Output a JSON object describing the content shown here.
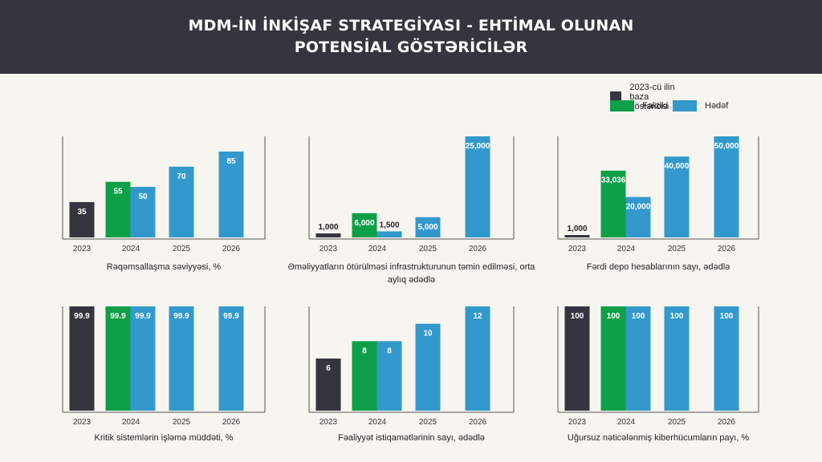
{
  "header": {
    "title_line1": "MDM-İN İNKİŞAF STRATEGİYASI - EHTİMAL OLUNAN",
    "title_line2": "POTENSİAL GÖSTƏRİCİLƏR"
  },
  "legend": {
    "base": "2023-cü ilin baza göstəricisi",
    "actual": "Faktiki",
    "target": "Hədəf"
  },
  "colors": {
    "base": "#34353f",
    "actual": "#0e9f49",
    "target": "#3399cc",
    "header": "#34353f"
  },
  "chart_data": [
    {
      "type": "bar",
      "caption": "Rəqəmsallaşma səviyyəsi, %",
      "categories": [
        "2023",
        "2024",
        "2025",
        "2026"
      ],
      "ylim": [
        0,
        100
      ],
      "bars": [
        {
          "category": "2023",
          "kind": "base",
          "value": 35,
          "label": "35"
        },
        {
          "category": "2024",
          "kind": "actual",
          "value": 55,
          "label": "55"
        },
        {
          "category": "2024",
          "kind": "target",
          "value": 50,
          "label": "50"
        },
        {
          "category": "2025",
          "kind": "target",
          "value": 70,
          "label": "70"
        },
        {
          "category": "2026",
          "kind": "target",
          "value": 85,
          "label": "85"
        }
      ]
    },
    {
      "type": "bar",
      "caption": "Əməliyyatların ötürülməsi infrastrukturunun təmin edilməsi, orta aylıq ədədlə",
      "categories": [
        "2023",
        "2024",
        "2025",
        "2026"
      ],
      "ylim": [
        0,
        25000
      ],
      "bars": [
        {
          "category": "2023",
          "kind": "base",
          "value": 1000,
          "label": "1,000"
        },
        {
          "category": "2024",
          "kind": "actual",
          "value": 6000,
          "label": "6,000"
        },
        {
          "category": "2024",
          "kind": "target",
          "value": 1500,
          "label": "1,500"
        },
        {
          "category": "2025",
          "kind": "target",
          "value": 5000,
          "label": "5,000"
        },
        {
          "category": "2026",
          "kind": "target",
          "value": 25000,
          "label": "25,000"
        }
      ]
    },
    {
      "type": "bar",
      "caption": "Fərdi depo hesablarının sayı, ədədlə",
      "categories": [
        "2023",
        "2024",
        "2025",
        "2026"
      ],
      "ylim": [
        0,
        50000
      ],
      "bars": [
        {
          "category": "2023",
          "kind": "base",
          "value": 1000,
          "label": "1,000"
        },
        {
          "category": "2024",
          "kind": "actual",
          "value": 33036,
          "label": "33,036"
        },
        {
          "category": "2024",
          "kind": "target",
          "value": 20000,
          "label": "20,000"
        },
        {
          "category": "2025",
          "kind": "target",
          "value": 40000,
          "label": "40,000"
        },
        {
          "category": "2026",
          "kind": "target",
          "value": 50000,
          "label": "50,000"
        }
      ]
    },
    {
      "type": "bar",
      "caption": "Kritik sistemlərin işləmə müddəti, %",
      "categories": [
        "2023",
        "2024",
        "2025",
        "2026"
      ],
      "ylim": [
        0,
        99.9
      ],
      "bars": [
        {
          "category": "2023",
          "kind": "base",
          "value": 99.9,
          "label": "99.9"
        },
        {
          "category": "2024",
          "kind": "actual",
          "value": 99.9,
          "label": "99.9"
        },
        {
          "category": "2024",
          "kind": "target",
          "value": 99.9,
          "label": "99.9"
        },
        {
          "category": "2025",
          "kind": "target",
          "value": 99.9,
          "label": "99.9"
        },
        {
          "category": "2026",
          "kind": "target",
          "value": 99.9,
          "label": "99.9"
        }
      ]
    },
    {
      "type": "bar",
      "caption": "Fəaliyyət istiqamətlərinin sayı, ədədlə",
      "categories": [
        "2023",
        "2024",
        "2025",
        "2026"
      ],
      "ylim": [
        0,
        12
      ],
      "bars": [
        {
          "category": "2023",
          "kind": "base",
          "value": 6,
          "label": "6"
        },
        {
          "category": "2024",
          "kind": "actual",
          "value": 8,
          "label": "8"
        },
        {
          "category": "2024",
          "kind": "target",
          "value": 8,
          "label": "8"
        },
        {
          "category": "2025",
          "kind": "target",
          "value": 10,
          "label": "10"
        },
        {
          "category": "2026",
          "kind": "target",
          "value": 12,
          "label": "12"
        }
      ]
    },
    {
      "type": "bar",
      "caption": "Uğursuz nəticələnmiş kiberhücumların payı,  %",
      "categories": [
        "2023",
        "2024",
        "2025",
        "2026"
      ],
      "ylim": [
        0,
        100
      ],
      "bars": [
        {
          "category": "2023",
          "kind": "base",
          "value": 100,
          "label": "100"
        },
        {
          "category": "2024",
          "kind": "actual",
          "value": 100,
          "label": "100"
        },
        {
          "category": "2024",
          "kind": "target",
          "value": 100,
          "label": "100"
        },
        {
          "category": "2025",
          "kind": "target",
          "value": 100,
          "label": "100"
        },
        {
          "category": "2026",
          "kind": "target",
          "value": 100,
          "label": "100"
        }
      ]
    }
  ]
}
